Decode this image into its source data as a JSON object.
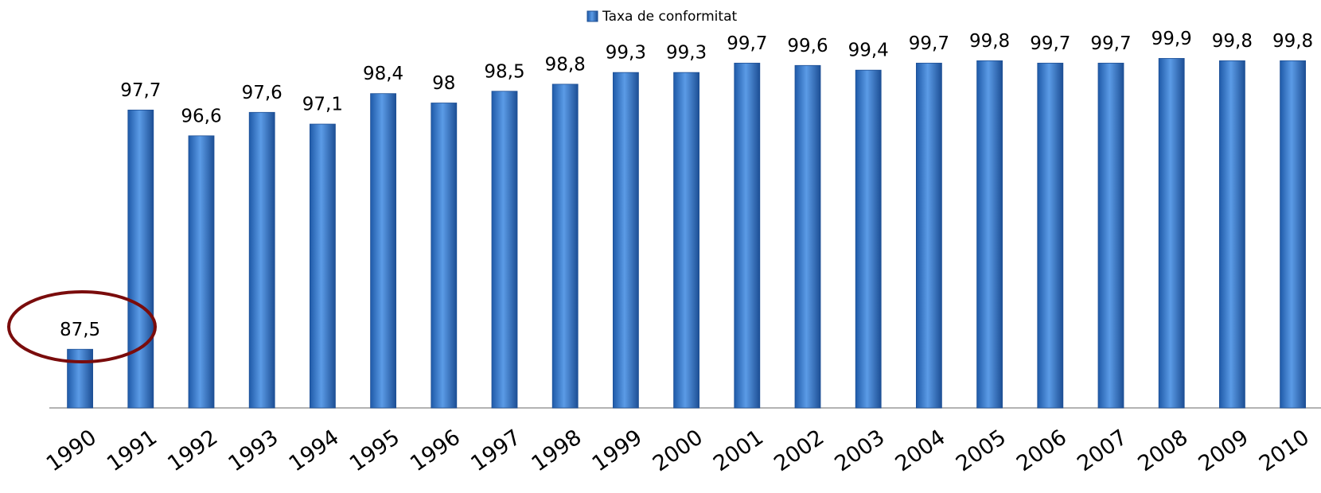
{
  "chart_data": {
    "type": "bar",
    "legend": "Taxa de conformitat",
    "series": [
      {
        "name": "Taxa de conformitat",
        "color": "#3a7fd0",
        "values": [
          87.5,
          97.7,
          96.6,
          97.6,
          97.1,
          98.4,
          98,
          98.5,
          98.8,
          99.3,
          99.3,
          99.7,
          99.6,
          99.4,
          99.7,
          99.8,
          99.7,
          99.7,
          99.9,
          99.8,
          99.8
        ],
        "value_labels": [
          "87,5",
          "97,7",
          "96,6",
          "97,6",
          "97,1",
          "98,4",
          "98",
          "98,5",
          "98,8",
          "99,3",
          "99,3",
          "99,7",
          "99,6",
          "99,4",
          "99,7",
          "99,8",
          "99,7",
          "99,7",
          "99,9",
          "99,8",
          "99,8"
        ]
      }
    ],
    "categories": [
      "1990",
      "1991",
      "1992",
      "1993",
      "1994",
      "1995",
      "1996",
      "1997",
      "1998",
      "1999",
      "2000",
      "2001",
      "2002",
      "2003",
      "2004",
      "2005",
      "2006",
      "2007",
      "2008",
      "2009",
      "2010"
    ],
    "ylim": [
      85,
      101
    ],
    "legend_position": "top"
  }
}
